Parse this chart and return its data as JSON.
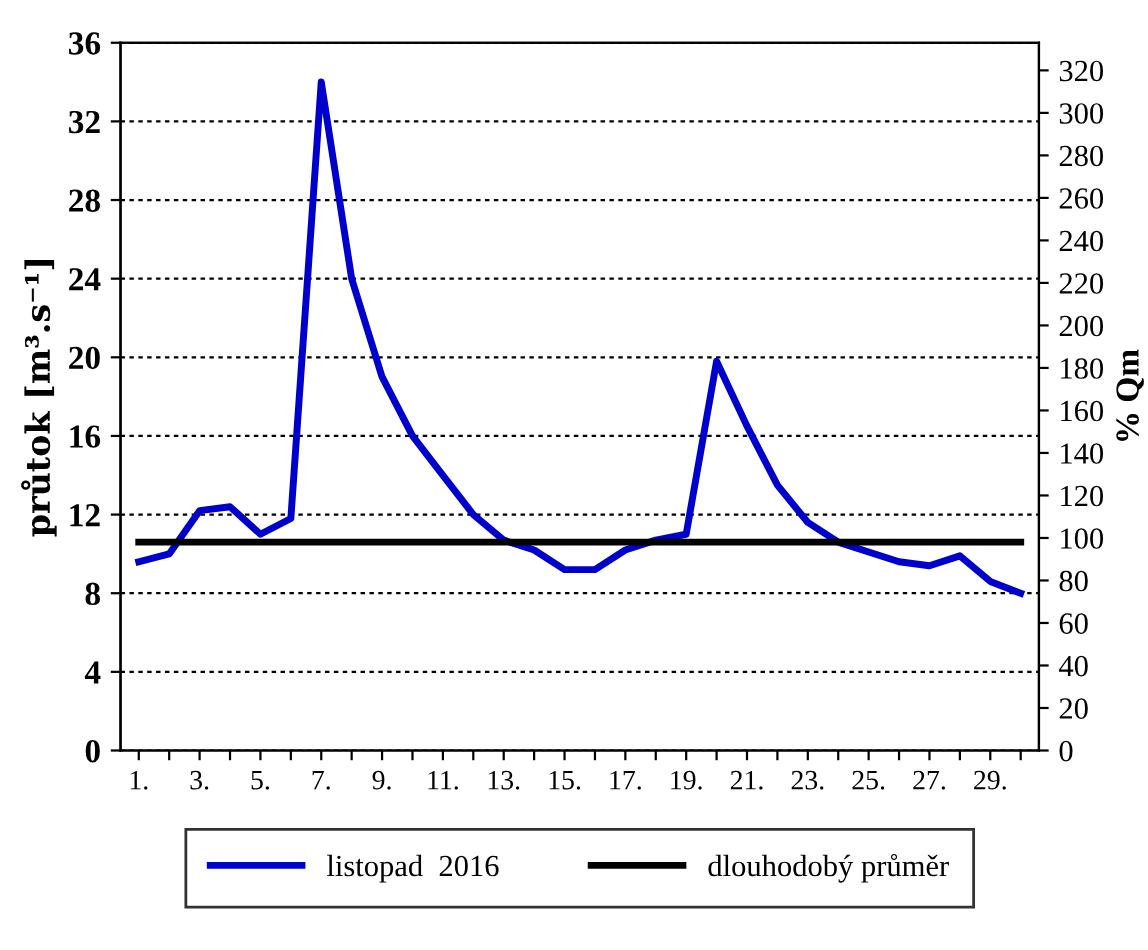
{
  "chart_data": {
    "type": "line",
    "ylabel": "průtok [m³.s⁻¹]",
    "y2label": "% Qm",
    "categories": [
      "1.",
      null,
      "3.",
      null,
      "5.",
      null,
      "7.",
      null,
      "9.",
      null,
      "11.",
      null,
      "13.",
      null,
      "15.",
      null,
      "17.",
      null,
      "19.",
      null,
      "21.",
      null,
      "23.",
      null,
      "25.",
      null,
      "27.",
      null,
      "29.",
      null
    ],
    "series": [
      {
        "name": "listopad  2016",
        "color": "#0000cc",
        "values": [
          9.6,
          10.0,
          12.2,
          12.4,
          11.0,
          11.8,
          34.0,
          24.0,
          19.0,
          16.0,
          14.0,
          12.0,
          10.7,
          10.2,
          9.2,
          9.2,
          10.2,
          10.7,
          11.0,
          19.8,
          16.5,
          13.5,
          11.6,
          10.6,
          10.1,
          9.6,
          9.4,
          9.9,
          8.6,
          8.0
        ]
      },
      {
        "name": "dlouhodobý průměr",
        "color": "#000000",
        "values": [
          10.6,
          10.6,
          10.6,
          10.6,
          10.6,
          10.6,
          10.6,
          10.6,
          10.6,
          10.6,
          10.6,
          10.6,
          10.6,
          10.6,
          10.6,
          10.6,
          10.6,
          10.6,
          10.6,
          10.6,
          10.6,
          10.6,
          10.6,
          10.6,
          10.6,
          10.6,
          10.6,
          10.6,
          10.6,
          10.6
        ]
      }
    ],
    "ylim": [
      0,
      36
    ],
    "yticks": [
      0,
      4,
      8,
      12,
      16,
      20,
      24,
      28,
      32,
      36
    ],
    "y2lim": [
      0,
      333
    ],
    "y2ticks": [
      0,
      20,
      40,
      60,
      80,
      100,
      120,
      140,
      160,
      180,
      200,
      220,
      240,
      260,
      280,
      300,
      320
    ],
    "grid": "y",
    "legend": "bottom",
    "marker": "none",
    "line_style": "solid"
  }
}
